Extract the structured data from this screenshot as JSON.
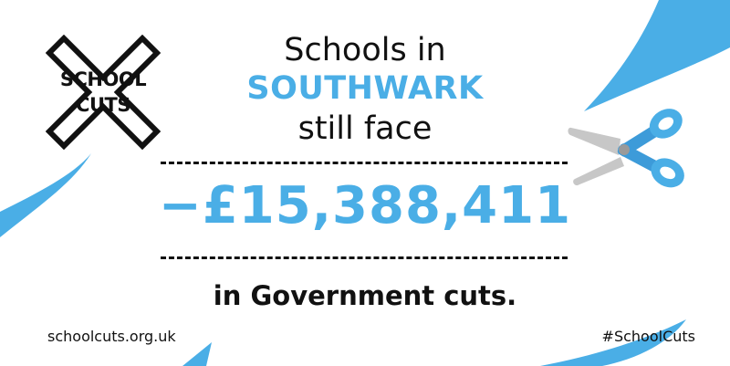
{
  "logo": {
    "line1": "SCHOOL",
    "line2": "CUTS",
    "icon": "x-cross-icon"
  },
  "headline": {
    "line1": "Schools in",
    "line2": "SOUTHWARK",
    "line3": "still face"
  },
  "amount": "−£15,388,411",
  "subline": "in Government cuts.",
  "footer": {
    "website": "schoolcuts.org.uk",
    "hashtag": "#SchoolCuts"
  },
  "decoration": {
    "icon": "scissors-icon"
  },
  "colors": {
    "accent": "#4aaee6",
    "text": "#111111",
    "background": "#ffffff",
    "scissors_blade": "#c7c7c7"
  }
}
